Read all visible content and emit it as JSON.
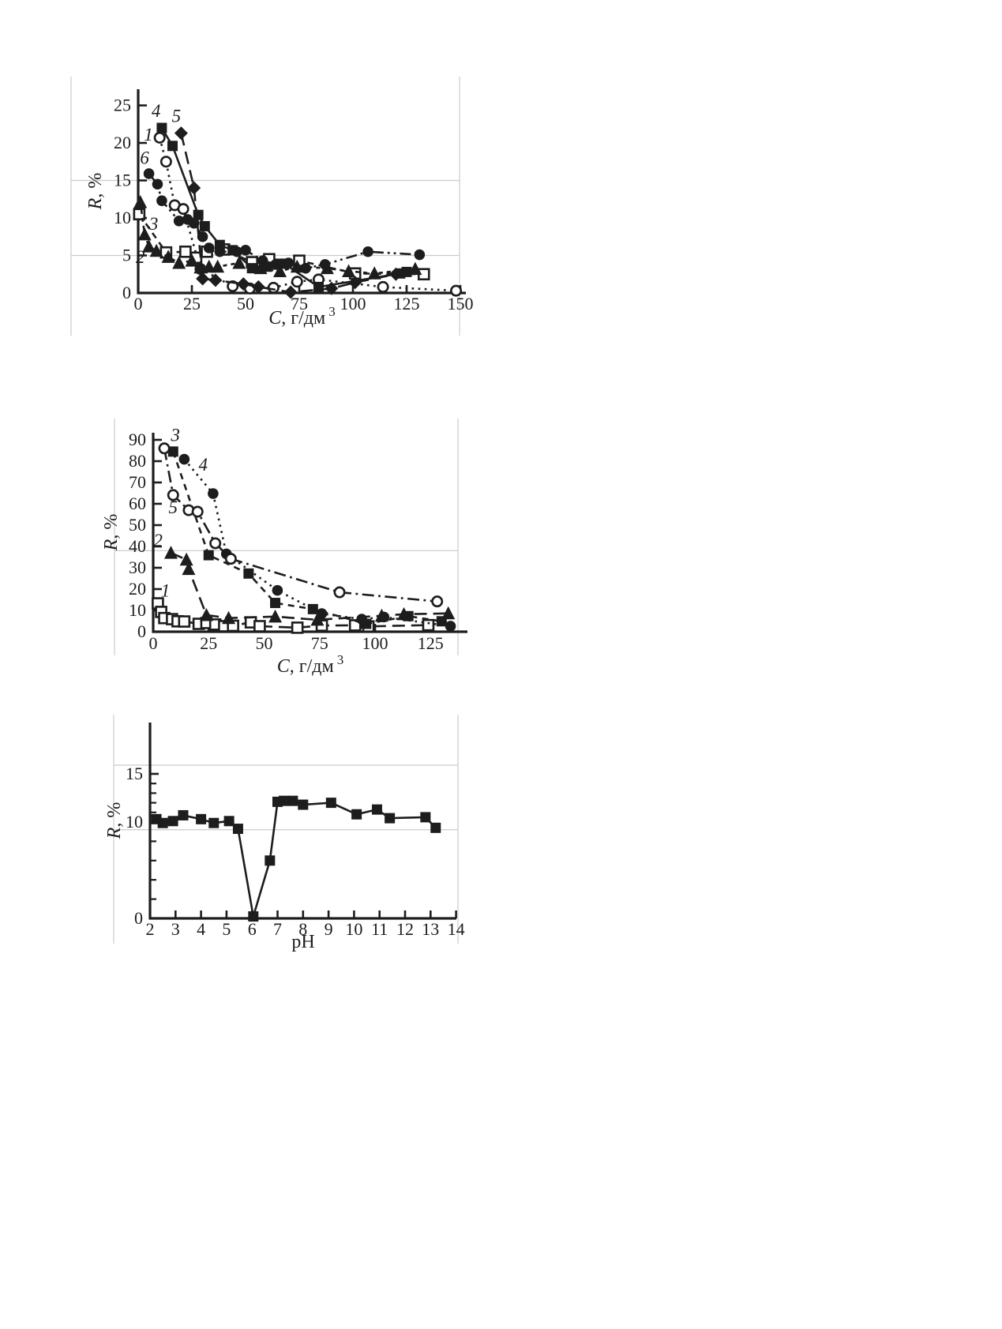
{
  "page": {
    "background": "#ffffff",
    "ink_color": "#1d1d1d",
    "grid_color": "#cccccc"
  },
  "chart_data": [
    {
      "name": "retention-vs-concentration-top",
      "type": "line",
      "title": "",
      "xlabel": {
        "italic": "C",
        "rest": ", г/дм",
        "sup": "3"
      },
      "ylabel": {
        "italic": "R",
        "rest": ", %"
      },
      "xlim": [
        0,
        153
      ],
      "ylim": [
        0,
        26
      ],
      "x_ticks": [
        0,
        25,
        50,
        75,
        100,
        125,
        150
      ],
      "y_ticks": [
        0,
        5,
        10,
        15,
        20,
        25
      ],
      "y_minor_ticks": [],
      "gridlines_y": [
        5,
        15
      ],
      "legend_position": "inline-curve-numbers",
      "series": [
        {
          "label": "1",
          "marker": "open-circle",
          "line": "dotted",
          "label_at": [
            4.8,
            20.3
          ],
          "x": [
            10,
            13,
            17,
            21,
            29,
            44,
            52,
            63,
            74,
            84,
            114,
            148
          ],
          "y": [
            20.7,
            17.5,
            11.7,
            11.2,
            3.2,
            0.9,
            0.6,
            0.7,
            1.5,
            1.8,
            0.8,
            0.3
          ]
        },
        {
          "label": "2",
          "marker": "open-square",
          "line": "dashed",
          "label_at": [
            1.0,
            4.0
          ],
          "x": [
            0.5,
            13,
            22,
            27,
            32,
            40,
            53,
            61,
            75,
            101,
            133
          ],
          "y": [
            10.5,
            5.4,
            5.5,
            4.7,
            5.5,
            5.8,
            4.1,
            4.5,
            4.3,
            2.6,
            2.5
          ]
        },
        {
          "label": "3",
          "marker": "filled-triangle",
          "line": "short-dash",
          "label_at": [
            7.2,
            8.4
          ],
          "x": [
            1,
            3,
            5,
            8.5,
            14,
            19,
            25,
            29,
            33,
            37,
            47,
            57,
            66,
            74,
            88,
            98,
            110,
            129
          ],
          "y": [
            12.1,
            7.8,
            6.2,
            5.6,
            4.8,
            4.0,
            4.3,
            3.4,
            3.5,
            3.5,
            4.0,
            3.3,
            2.9,
            3.5,
            3.3,
            2.9,
            2.6,
            3.2
          ]
        },
        {
          "label": "4",
          "marker": "filled-square",
          "line": "solid",
          "label_at": [
            8.3,
            23.5
          ],
          "x": [
            11,
            16,
            28,
            31,
            38,
            44,
            53,
            60,
            68,
            84,
            122,
            125
          ],
          "y": [
            22.0,
            19.6,
            10.4,
            8.9,
            6.4,
            5.7,
            3.3,
            3.5,
            3.9,
            0.8,
            2.6,
            2.8
          ]
        },
        {
          "label": "5",
          "marker": "filled-diamond",
          "line": "long-dash",
          "label_at": [
            17.8,
            22.8
          ],
          "x": [
            20,
            26,
            30,
            36,
            49,
            56,
            71,
            90,
            101,
            120
          ],
          "y": [
            21.3,
            14.0,
            1.9,
            1.7,
            1.2,
            0.8,
            0.1,
            0.6,
            1.4,
            2.5
          ]
        },
        {
          "label": "6",
          "marker": "filled-circle",
          "line": "dash-dot-dot",
          "label_at": [
            3.0,
            17.2
          ],
          "x": [
            5,
            9,
            11,
            19,
            23,
            26,
            30,
            33,
            38,
            46,
            50,
            58,
            64,
            70,
            78,
            87,
            107,
            131
          ],
          "y": [
            15.9,
            14.5,
            12.3,
            9.6,
            9.8,
            9.3,
            7.5,
            6.0,
            5.5,
            5.5,
            5.7,
            4.3,
            3.8,
            4.0,
            3.3,
            3.8,
            5.5,
            5.1
          ]
        }
      ]
    },
    {
      "name": "retention-vs-concentration-middle",
      "type": "line",
      "title": "",
      "xlabel": {
        "italic": "C",
        "rest": ", г/дм",
        "sup": "3"
      },
      "ylabel": {
        "italic": "R",
        "rest": ", %"
      },
      "xlim": [
        0,
        140
      ],
      "ylim": [
        0,
        94
      ],
      "x_ticks": [
        0,
        25,
        50,
        75,
        100,
        125
      ],
      "y_ticks": [
        0,
        10,
        20,
        30,
        40,
        50,
        60,
        70,
        80,
        90
      ],
      "y_minor_ticks": [],
      "gridlines_y": [
        38
      ],
      "legend_position": "inline-curve-numbers",
      "series": [
        {
          "label": "1",
          "marker": "open-square",
          "line": "long-dash",
          "label_at": [
            5.5,
            16.5
          ],
          "x": [
            2.1,
            3.6,
            5,
            8.5,
            11,
            14,
            20.5,
            24,
            28,
            32,
            36,
            44,
            48,
            65,
            76,
            91,
            97,
            124
          ],
          "y": [
            13.3,
            9.3,
            6.4,
            5.9,
            4.9,
            4.8,
            3.7,
            4.1,
            3.4,
            2.6,
            2.8,
            4.4,
            2.6,
            1.9,
            2.9,
            3.0,
            2.5,
            3.1
          ]
        },
        {
          "label": "2",
          "marker": "filled-triangle",
          "line": "long-dash",
          "label_at": [
            2.2,
            40.0
          ],
          "x": [
            8,
            15,
            16,
            24,
            34,
            55,
            74,
            103,
            113,
            133
          ],
          "y": [
            37.0,
            33.8,
            29.4,
            7.8,
            6.4,
            7.1,
            5.6,
            7.5,
            8.2,
            8.6
          ]
        },
        {
          "label": "3",
          "marker": "filled-square",
          "line": "dashed",
          "label_at": [
            10.0,
            89.5
          ],
          "x": [
            9,
            25,
            43,
            55,
            72,
            96,
            115,
            130
          ],
          "y": [
            84.5,
            35.9,
            27.3,
            13.5,
            10.6,
            3.7,
            7.3,
            4.9
          ]
        },
        {
          "label": "4",
          "marker": "filled-circle",
          "line": "dotted",
          "label_at": [
            22.5,
            75.5
          ],
          "x": [
            14,
            27,
            33,
            56,
            76,
            94,
            104,
            134
          ],
          "y": [
            80.9,
            64.8,
            36.5,
            19.4,
            8.5,
            5.9,
            6.9,
            2.6
          ]
        },
        {
          "label": "5",
          "marker": "open-circle",
          "line": "dash-dot",
          "label_at": [
            9.0,
            55.5
          ],
          "x": [
            5,
            9,
            16,
            20,
            28,
            35,
            84,
            128
          ],
          "y": [
            86.0,
            64.1,
            57.0,
            56.3,
            41.5,
            34.2,
            18.5,
            14.2
          ]
        }
      ]
    },
    {
      "name": "retention-vs-ph-bottom",
      "type": "line",
      "title": "",
      "xlabel": {
        "italic": "",
        "rest": "pH",
        "sup": ""
      },
      "ylabel": {
        "italic": "R",
        "rest": ", %"
      },
      "xlim": [
        2,
        14.3
      ],
      "ylim": [
        0,
        16.3
      ],
      "x_ticks": [
        2,
        3,
        4,
        5,
        6,
        7,
        8,
        9,
        10,
        11,
        12,
        13,
        14
      ],
      "y_ticks": [
        0,
        10,
        15
      ],
      "y_minor_ticks": [
        2,
        4,
        6,
        8,
        11,
        12,
        13,
        14
      ],
      "gridlines_y": [
        9.2,
        15.9
      ],
      "legend_position": "none",
      "series": [
        {
          "label": "",
          "marker": "filled-square",
          "line": "solid",
          "label_at": null,
          "x": [
            2.25,
            2.5,
            2.9,
            3.3,
            4.0,
            4.5,
            5.1,
            5.45,
            6.05,
            6.7,
            7.0,
            7.25,
            7.6,
            8.0,
            9.1,
            10.1,
            10.9,
            11.4,
            12.8,
            13.2
          ],
          "y": [
            10.3,
            9.9,
            10.1,
            10.7,
            10.3,
            9.9,
            10.1,
            9.3,
            0.2,
            6.0,
            12.1,
            12.2,
            12.2,
            11.8,
            12.0,
            10.8,
            11.3,
            10.4,
            10.5,
            9.4
          ]
        }
      ]
    }
  ]
}
